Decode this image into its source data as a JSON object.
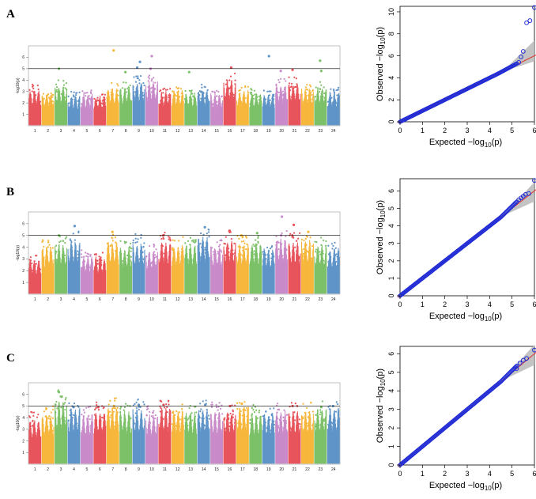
{
  "chart_data": [
    {
      "type": "scatter",
      "subtype": "manhattan",
      "panel": "A",
      "ylabel": "-log10(p)",
      "threshold": 5,
      "ylim": [
        0,
        7
      ],
      "yticks": [
        1,
        2,
        3,
        4,
        5,
        6
      ],
      "chromosomes": [
        "1",
        "2",
        "3",
        "4",
        "5",
        "6",
        "7",
        "8",
        "9",
        "10",
        "11",
        "12",
        "13",
        "14",
        "15",
        "16",
        "17",
        "18",
        "19",
        "20",
        "21",
        "22",
        "23",
        "24"
      ],
      "base_levels": [
        2.9,
        2.6,
        3.2,
        2.4,
        2.5,
        2.3,
        3.0,
        3.1,
        3.5,
        3.6,
        2.7,
        2.8,
        2.6,
        2.9,
        2.5,
        3.7,
        2.8,
        2.6,
        2.5,
        3.3,
        3.4,
        3.0,
        3.1,
        2.7
      ],
      "peaks": [
        {
          "chr": 3,
          "value": 5.0
        },
        {
          "chr": 7,
          "value": 6.6
        },
        {
          "chr": 8,
          "value": 4.7
        },
        {
          "chr": 9,
          "value": 5.1
        },
        {
          "chr": 9,
          "value": 5.6
        },
        {
          "chr": 10,
          "value": 6.1
        },
        {
          "chr": 10,
          "value": 5.0
        },
        {
          "chr": 16,
          "value": 5.1
        },
        {
          "chr": 19,
          "value": 6.1
        },
        {
          "chr": 20,
          "value": 4.8
        },
        {
          "chr": 21,
          "value": 4.9
        },
        {
          "chr": 23,
          "value": 4.8
        },
        {
          "chr": 23,
          "value": 5.7
        },
        {
          "chr": 13,
          "value": 4.7
        }
      ],
      "seed": 11
    },
    {
      "type": "scatter",
      "subtype": "manhattan",
      "panel": "B",
      "ylabel": "-log10(p)",
      "threshold": 5,
      "ylim": [
        0,
        7
      ],
      "yticks": [
        1,
        2,
        3,
        4,
        5,
        6
      ],
      "chromosomes": [
        "1",
        "2",
        "3",
        "4",
        "5",
        "6",
        "7",
        "8",
        "9",
        "10",
        "11",
        "12",
        "13",
        "14",
        "15",
        "16",
        "17",
        "18",
        "19",
        "20",
        "21",
        "22",
        "23",
        "24"
      ],
      "base_levels": [
        2.7,
        3.8,
        4.0,
        4.3,
        3.0,
        2.9,
        4.2,
        3.7,
        4.1,
        3.4,
        4.2,
        3.9,
        4.0,
        4.6,
        3.8,
        4.3,
        4.0,
        4.1,
        3.6,
        4.4,
        4.2,
        4.3,
        3.9,
        3.6
      ],
      "peaks": [
        {
          "chr": 3,
          "value": 5.0
        },
        {
          "chr": 4,
          "value": 5.8
        },
        {
          "chr": 7,
          "value": 5.3
        },
        {
          "chr": 11,
          "value": 5.0
        },
        {
          "chr": 14,
          "value": 5.7
        },
        {
          "chr": 16,
          "value": 5.4
        },
        {
          "chr": 17,
          "value": 5.0
        },
        {
          "chr": 18,
          "value": 5.2
        },
        {
          "chr": 20,
          "value": 6.6
        },
        {
          "chr": 21,
          "value": 5.9
        },
        {
          "chr": 21,
          "value": 4.9
        },
        {
          "chr": 22,
          "value": 5.3
        },
        {
          "chr": 20,
          "value": 5.0
        }
      ],
      "seed": 23
    },
    {
      "type": "scatter",
      "subtype": "manhattan",
      "panel": "C",
      "ylabel": "-log10(p)",
      "threshold": 5,
      "ylim": [
        0,
        7
      ],
      "yticks": [
        1,
        2,
        3,
        4,
        5,
        6
      ],
      "chromosomes": [
        "1",
        "2",
        "3",
        "4",
        "5",
        "6",
        "7",
        "8",
        "9",
        "10",
        "11",
        "12",
        "13",
        "14",
        "15",
        "16",
        "17",
        "18",
        "19",
        "20",
        "21",
        "22",
        "23",
        "24"
      ],
      "base_levels": [
        3.6,
        4.0,
        5.1,
        4.5,
        4.0,
        4.3,
        4.6,
        4.3,
        4.5,
        4.0,
        4.6,
        4.3,
        4.2,
        4.4,
        4.3,
        4.2,
        4.7,
        4.1,
        4.1,
        4.3,
        4.3,
        4.3,
        4.5,
        4.6
      ],
      "peaks": [
        {
          "chr": 3,
          "value": 6.2
        },
        {
          "chr": 3,
          "value": 5.8
        },
        {
          "chr": 4,
          "value": 4.9
        },
        {
          "chr": 6,
          "value": 4.9
        },
        {
          "chr": 7,
          "value": 5.0
        },
        {
          "chr": 9,
          "value": 5.1
        },
        {
          "chr": 11,
          "value": 5.1
        },
        {
          "chr": 14,
          "value": 5.1
        },
        {
          "chr": 16,
          "value": 5.0
        },
        {
          "chr": 17,
          "value": 5.2
        },
        {
          "chr": 21,
          "value": 5.0
        },
        {
          "chr": 23,
          "value": 4.9
        },
        {
          "chr": 24,
          "value": 5.0
        }
      ],
      "seed": 37
    },
    {
      "type": "scatter",
      "subtype": "qq",
      "panel": "A",
      "xlabel": "Expected −log10(p)",
      "ylabel": "Observed −log10(p)",
      "xlim": [
        0,
        6
      ],
      "ylim": [
        0,
        10.5
      ],
      "xticks": [
        0,
        1,
        2,
        3,
        4,
        5,
        6
      ],
      "yticks": [
        0,
        2,
        4,
        6,
        8,
        10
      ],
      "band_end": [
        6.0,
        5.5,
        7.4
      ],
      "tail_points": [
        [
          5.3,
          5.4
        ],
        [
          5.4,
          5.9
        ],
        [
          5.5,
          6.4
        ],
        [
          5.65,
          9.0
        ],
        [
          5.8,
          9.2
        ],
        [
          6.0,
          10.4
        ]
      ],
      "bend": 4.4,
      "bend_gain": 0.1
    },
    {
      "type": "scatter",
      "subtype": "qq",
      "panel": "B",
      "xlabel": "Expected −log10(p)",
      "ylabel": "Observed −log10(p)",
      "xlim": [
        0,
        6
      ],
      "ylim": [
        0,
        6.7
      ],
      "xticks": [
        0,
        1,
        2,
        3,
        4,
        5,
        6
      ],
      "yticks": [
        0,
        1,
        2,
        3,
        4,
        5,
        6
      ],
      "band_end": [
        6.0,
        5.4,
        6.5
      ],
      "tail_points": [
        [
          5.3,
          5.5
        ],
        [
          5.4,
          5.6
        ],
        [
          5.5,
          5.7
        ],
        [
          5.6,
          5.8
        ],
        [
          5.75,
          5.85
        ],
        [
          6.0,
          6.6
        ]
      ],
      "bend": 4.5,
      "bend_gain": 0.25
    },
    {
      "type": "scatter",
      "subtype": "qq",
      "panel": "C",
      "xlabel": "Expected −log10(p)",
      "ylabel": "Observed −log10(p)",
      "xlim": [
        0,
        6
      ],
      "ylim": [
        0,
        6.4
      ],
      "xticks": [
        0,
        1,
        2,
        3,
        4,
        5,
        6
      ],
      "yticks": [
        0,
        1,
        2,
        3,
        4,
        5,
        6
      ],
      "band_end": [
        6.0,
        5.4,
        6.5
      ],
      "tail_points": [
        [
          5.2,
          5.2
        ],
        [
          5.35,
          5.5
        ],
        [
          5.5,
          5.65
        ],
        [
          5.65,
          5.75
        ],
        [
          6.0,
          6.2
        ]
      ],
      "bend": 4.5,
      "bend_gain": 0.2
    }
  ],
  "colors": {
    "chromosome_palette": [
      "#e8545c",
      "#f6b73c",
      "#7cc168",
      "#5f94c8",
      "#c98bc9"
    ],
    "qq_points": "#1f2bd6",
    "qq_line": "#e0332b",
    "qq_band": "#bdbdbd",
    "threshold_line": "#000000"
  }
}
